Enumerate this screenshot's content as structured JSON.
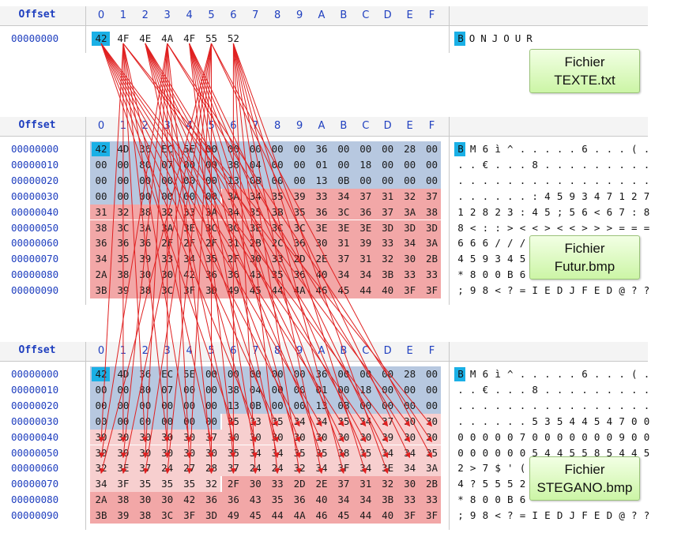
{
  "header": {
    "offset_label": "Offset",
    "columns": [
      "0",
      "1",
      "2",
      "3",
      "4",
      "5",
      "6",
      "7",
      "8",
      "9",
      "A",
      "B",
      "C",
      "D",
      "E",
      "F"
    ]
  },
  "panels": [
    {
      "name": "texte",
      "callout": [
        "Fichier",
        "TEXTE.txt"
      ],
      "rows": [
        {
          "offset": "00000000",
          "hex": [
            "42",
            "4F",
            "4E",
            "4A",
            "4F",
            "55",
            "52"
          ],
          "ascii": [
            "B",
            "O",
            "N",
            "J",
            "O",
            "U",
            "R"
          ]
        }
      ]
    },
    {
      "name": "futur",
      "callout": [
        "Fichier",
        "Futur.bmp"
      ],
      "rows": [
        {
          "offset": "00000000",
          "hex": [
            "42",
            "4D",
            "36",
            "EC",
            "5E",
            "00",
            "00",
            "00",
            "00",
            "00",
            "36",
            "00",
            "00",
            "00",
            "28",
            "00"
          ],
          "ascii": [
            "B",
            "M",
            "6",
            "ì",
            "^",
            ".",
            ".",
            ".",
            ".",
            ".",
            "6",
            ".",
            ".",
            ".",
            "(",
            "."
          ]
        },
        {
          "offset": "00000010",
          "hex": [
            "00",
            "00",
            "80",
            "07",
            "00",
            "00",
            "38",
            "04",
            "00",
            "00",
            "01",
            "00",
            "18",
            "00",
            "00",
            "00"
          ],
          "ascii": [
            ".",
            ".",
            "€",
            ".",
            ".",
            ".",
            "8",
            ".",
            ".",
            ".",
            ".",
            ".",
            ".",
            ".",
            ".",
            "."
          ]
        },
        {
          "offset": "00000020",
          "hex": [
            "00",
            "00",
            "00",
            "00",
            "00",
            "00",
            "13",
            "0B",
            "00",
            "00",
            "13",
            "0B",
            "00",
            "00",
            "00",
            "00"
          ],
          "ascii": [
            ".",
            ".",
            ".",
            ".",
            ".",
            ".",
            ".",
            ".",
            ".",
            ".",
            ".",
            ".",
            ".",
            ".",
            ".",
            "."
          ]
        },
        {
          "offset": "00000030",
          "hex": [
            "00",
            "00",
            "00",
            "00",
            "00",
            "00",
            "3A",
            "34",
            "35",
            "39",
            "33",
            "34",
            "37",
            "31",
            "32",
            "37"
          ],
          "ascii": [
            ".",
            ".",
            ".",
            ".",
            ".",
            ".",
            ":",
            "4",
            "5",
            "9",
            "3",
            "4",
            "7",
            "1",
            "2",
            "7"
          ]
        },
        {
          "offset": "00000040",
          "hex": [
            "31",
            "32",
            "38",
            "32",
            "33",
            "3A",
            "34",
            "35",
            "3B",
            "35",
            "36",
            "3C",
            "36",
            "37",
            "3A",
            "38"
          ],
          "ascii": [
            "1",
            "2",
            "8",
            "2",
            "3",
            ":",
            "4",
            "5",
            ";",
            "5",
            "6",
            "<",
            "6",
            "7",
            ":",
            "8"
          ]
        },
        {
          "offset": "00000050",
          "hex": [
            "38",
            "3C",
            "3A",
            "3A",
            "3E",
            "3C",
            "3C",
            "3E",
            "3C",
            "3C",
            "3E",
            "3E",
            "3E",
            "3D",
            "3D",
            "3D"
          ],
          "ascii": [
            "8",
            "<",
            ":",
            ":",
            ">",
            "<",
            "<",
            ">",
            "<",
            "<",
            ">",
            ">",
            ">",
            "=",
            "=",
            "="
          ]
        },
        {
          "offset": "00000060",
          "hex": [
            "36",
            "36",
            "36",
            "2F",
            "2F",
            "2F",
            "31",
            "2B",
            "2C",
            "36",
            "30",
            "31",
            "39",
            "33",
            "34",
            "3A"
          ],
          "ascii": [
            "6",
            "6",
            "6",
            "/",
            "/",
            "/",
            "",
            "",
            "",
            "",
            "",
            "",
            "",
            "",
            "",
            ""
          ]
        },
        {
          "offset": "00000070",
          "hex": [
            "34",
            "35",
            "39",
            "33",
            "34",
            "35",
            "2F",
            "30",
            "33",
            "2D",
            "2E",
            "37",
            "31",
            "32",
            "30",
            "2B"
          ],
          "ascii": [
            "4",
            "5",
            "9",
            "3",
            "4",
            "5",
            "",
            "",
            "",
            "",
            "",
            "",
            "",
            "",
            "",
            ""
          ]
        },
        {
          "offset": "00000080",
          "hex": [
            "2A",
            "38",
            "30",
            "30",
            "42",
            "36",
            "36",
            "43",
            "35",
            "36",
            "40",
            "34",
            "34",
            "3B",
            "33",
            "33"
          ],
          "ascii": [
            "*",
            "8",
            "0",
            "0",
            "B",
            "6",
            "",
            "",
            "",
            "",
            "",
            "",
            "",
            "",
            "",
            ""
          ]
        },
        {
          "offset": "00000090",
          "hex": [
            "3B",
            "39",
            "38",
            "3C",
            "3F",
            "3D",
            "49",
            "45",
            "44",
            "4A",
            "46",
            "45",
            "44",
            "40",
            "3F",
            "3F"
          ],
          "ascii": [
            ";",
            "9",
            "8",
            "<",
            "?",
            "=",
            "I",
            "E",
            "D",
            "J",
            "F",
            "E",
            "D",
            "@",
            "?",
            "?"
          ]
        }
      ]
    },
    {
      "name": "stegano",
      "callout": [
        "Fichier",
        "STEGANO.bmp"
      ],
      "rows": [
        {
          "offset": "00000000",
          "hex": [
            "42",
            "4D",
            "36",
            "EC",
            "5E",
            "00",
            "00",
            "00",
            "00",
            "00",
            "36",
            "00",
            "00",
            "00",
            "28",
            "00"
          ],
          "ascii": [
            "B",
            "M",
            "6",
            "ì",
            "^",
            ".",
            ".",
            ".",
            ".",
            ".",
            "6",
            ".",
            ".",
            ".",
            "(",
            "."
          ]
        },
        {
          "offset": "00000010",
          "hex": [
            "00",
            "00",
            "80",
            "07",
            "00",
            "00",
            "38",
            "04",
            "00",
            "00",
            "01",
            "00",
            "18",
            "00",
            "00",
            "00"
          ],
          "ascii": [
            ".",
            ".",
            "€",
            ".",
            ".",
            ".",
            "8",
            ".",
            ".",
            ".",
            ".",
            ".",
            ".",
            ".",
            ".",
            "."
          ]
        },
        {
          "offset": "00000020",
          "hex": [
            "00",
            "00",
            "00",
            "00",
            "00",
            "00",
            "13",
            "0B",
            "00",
            "00",
            "13",
            "0B",
            "00",
            "00",
            "00",
            "00"
          ],
          "ascii": [
            ".",
            ".",
            ".",
            ".",
            ".",
            ".",
            ".",
            ".",
            ".",
            ".",
            ".",
            ".",
            ".",
            ".",
            ".",
            "."
          ]
        },
        {
          "offset": "00000030",
          "hex": [
            "00",
            "00",
            "00",
            "00",
            "00",
            "00",
            "35",
            "33",
            "35",
            "34",
            "34",
            "35",
            "34",
            "37",
            "30",
            "30"
          ],
          "ascii": [
            ".",
            ".",
            ".",
            ".",
            ".",
            ".",
            "5",
            "3",
            "5",
            "4",
            "4",
            "5",
            "4",
            "7",
            "0",
            "0"
          ]
        },
        {
          "offset": "00000040",
          "hex": [
            "30",
            "30",
            "30",
            "30",
            "30",
            "37",
            "30",
            "30",
            "30",
            "30",
            "30",
            "30",
            "30",
            "39",
            "30",
            "30"
          ],
          "ascii": [
            "0",
            "0",
            "0",
            "0",
            "0",
            "7",
            "0",
            "0",
            "0",
            "0",
            "0",
            "0",
            "0",
            "9",
            "0",
            "0"
          ]
        },
        {
          "offset": "00000050",
          "hex": [
            "30",
            "30",
            "30",
            "30",
            "30",
            "30",
            "35",
            "34",
            "34",
            "35",
            "35",
            "38",
            "35",
            "34",
            "34",
            "35"
          ],
          "ascii": [
            "0",
            "0",
            "0",
            "0",
            "0",
            "0",
            "5",
            "4",
            "4",
            "5",
            "5",
            "8",
            "5",
            "4",
            "4",
            "5"
          ]
        },
        {
          "offset": "00000060",
          "hex": [
            "32",
            "3E",
            "37",
            "24",
            "27",
            "28",
            "37",
            "24",
            "24",
            "32",
            "34",
            "3F",
            "34",
            "3E",
            "34",
            "3A"
          ],
          "ascii": [
            "2",
            ">",
            "7",
            "$",
            "'",
            "(",
            "",
            "",
            "",
            "",
            "",
            "",
            "",
            "",
            "",
            ""
          ]
        },
        {
          "offset": "00000070",
          "hex": [
            "34",
            "3F",
            "35",
            "35",
            "35",
            "32",
            "2F",
            "30",
            "33",
            "2D",
            "2E",
            "37",
            "31",
            "32",
            "30",
            "2B"
          ],
          "ascii": [
            "4",
            "?",
            "5",
            "5",
            "5",
            "2",
            "/",
            "",
            "",
            "",
            "",
            "",
            "",
            "",
            "",
            ""
          ]
        },
        {
          "offset": "00000080",
          "hex": [
            "2A",
            "38",
            "30",
            "30",
            "42",
            "36",
            "36",
            "43",
            "35",
            "36",
            "40",
            "34",
            "34",
            "3B",
            "33",
            "33"
          ],
          "ascii": [
            "*",
            "8",
            "0",
            "0",
            "B",
            "6",
            "",
            "",
            "",
            "",
            "",
            "",
            "",
            "",
            "",
            ""
          ]
        },
        {
          "offset": "00000090",
          "hex": [
            "3B",
            "39",
            "38",
            "3C",
            "3F",
            "3D",
            "49",
            "45",
            "44",
            "4A",
            "46",
            "45",
            "44",
            "40",
            "3F",
            "3F"
          ],
          "ascii": [
            ";",
            "9",
            "8",
            "<",
            "?",
            "=",
            "I",
            "E",
            "D",
            "J",
            "F",
            "E",
            "D",
            "@",
            "?",
            "?"
          ]
        }
      ]
    }
  ],
  "colors": {
    "header_blue": "#1f3fbf",
    "bmp_header_band": "#b7c8e0",
    "pixel_band": "#f2a7a7",
    "modified_band": "#f7cfcf",
    "selection": "#1ab0e6",
    "arrow": "#e02020"
  }
}
